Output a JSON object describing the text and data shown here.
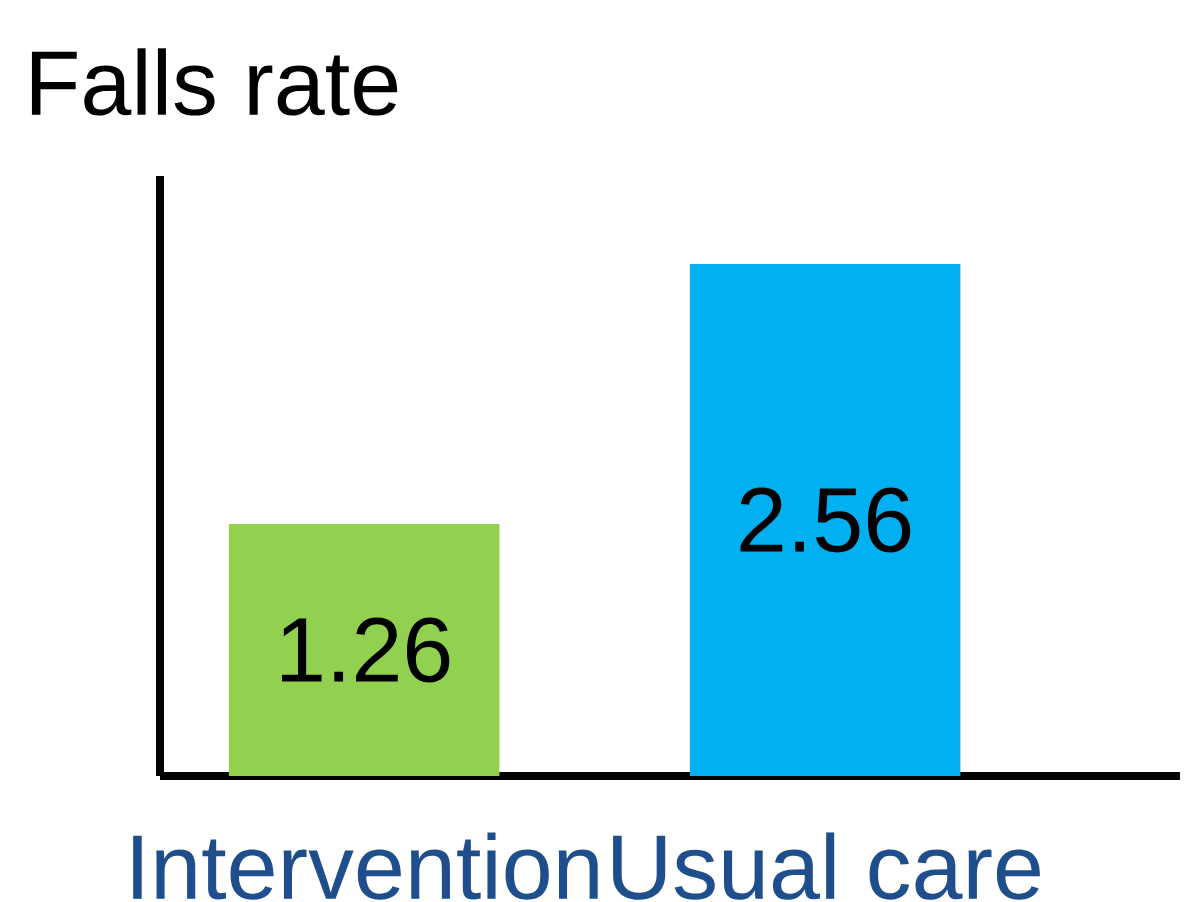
{
  "chart_data": {
    "type": "bar",
    "ylabel": "Falls rate",
    "categories": [
      "Intervention",
      "Usual care"
    ],
    "values": [
      1.26,
      2.56
    ],
    "colors": [
      "#92d050",
      "#00b0f0"
    ],
    "ylim": [
      0,
      3
    ],
    "tick_labels": "x",
    "data_labels": true
  }
}
